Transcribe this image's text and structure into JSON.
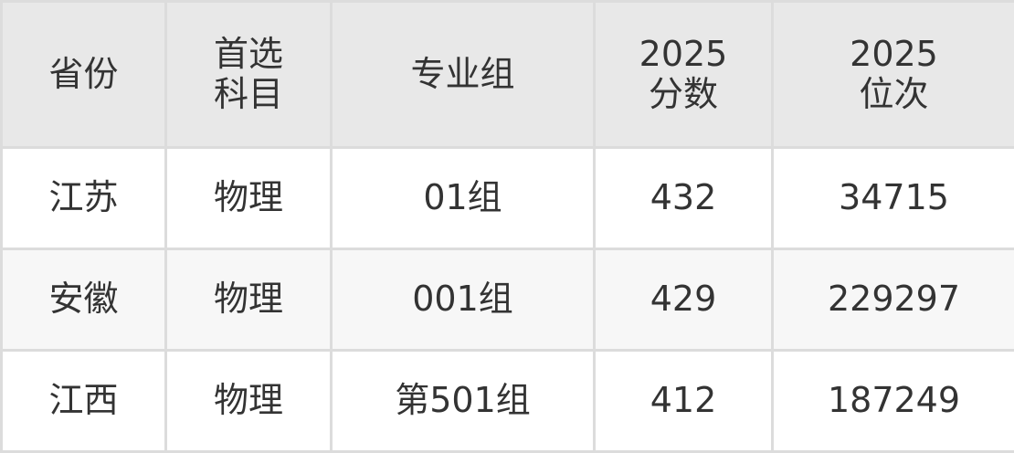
{
  "headers": [
    "省份",
    "首选\n科目",
    "专业组",
    "2025\n分数",
    "2025\n位次"
  ],
  "rows": [
    [
      "江苏",
      "物理",
      "01组",
      "432",
      "34715"
    ],
    [
      "安徽",
      "物理",
      "001组",
      "429",
      "229297"
    ],
    [
      "江西",
      "物理",
      "第501组",
      "412",
      "187249"
    ]
  ]
}
